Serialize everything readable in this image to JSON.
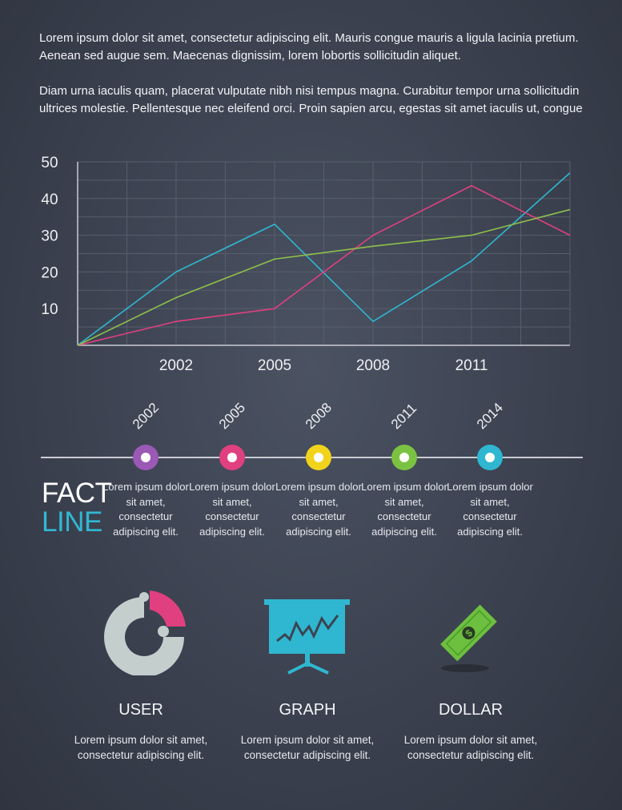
{
  "intro": {
    "p1": "Lorem ipsum dolor sit amet, consectetur adipiscing elit. Mauris congue mauris a ligula lacinia pretium. Aenean sed augue sem. Maecenas dignissim, lorem lobortis sollicitudin aliquet.",
    "p2": "Diam urna iaculis quam, placerat vulputate nibh nisi tempus magna. Curabitur tempor urna sollicitudin ultrices molestie. Pellentesque nec eleifend orci. Proin sapien arcu, egestas sit amet iaculis ut, congue"
  },
  "chart_data": {
    "type": "line",
    "x": [
      1999,
      2002,
      2005,
      2008,
      2011,
      2014
    ],
    "x_ticks": [
      "2002",
      "2005",
      "2008",
      "2011"
    ],
    "y_ticks": [
      "10",
      "20",
      "30",
      "40",
      "50"
    ],
    "ylim": [
      0,
      50
    ],
    "xlim": [
      1999,
      2014
    ],
    "grid": true,
    "series": [
      {
        "color": "#2fb7d1",
        "values": [
          0,
          20,
          33,
          6.5,
          23,
          47
        ]
      },
      {
        "color": "#e0407f",
        "values": [
          0,
          6.5,
          10,
          30,
          43.5,
          30
        ]
      },
      {
        "color": "#8fc04b",
        "values": [
          0,
          13,
          23.5,
          27,
          30,
          37
        ]
      }
    ]
  },
  "timeline": {
    "items": [
      {
        "year": "2002",
        "color": "#9b59b6",
        "text": "Lorem ipsum dolor sit amet, consectetur adipiscing elit."
      },
      {
        "year": "2005",
        "color": "#e0407f",
        "text": "Lorem ipsum dolor sit amet, consectetur adipiscing elit."
      },
      {
        "year": "2008",
        "color": "#f2d31b",
        "text": "Lorem ipsum dolor sit amet, consectetur adipiscing elit."
      },
      {
        "year": "2011",
        "color": "#7cc242",
        "text": "Lorem ipsum dolor sit amet, consectetur adipiscing elit."
      },
      {
        "year": "2014",
        "color": "#2fb7d1",
        "text": "Lorem ipsum dolor sit amet, consectetur adipiscing elit."
      }
    ]
  },
  "fact": {
    "line1": "FACT",
    "line2": "LINE"
  },
  "features": [
    {
      "title": "USER",
      "desc": "Lorem ipsum dolor sit amet, consectetur adipiscing elit."
    },
    {
      "title": "GRAPH",
      "desc": "Lorem ipsum dolor sit amet, consectetur adipiscing elit."
    },
    {
      "title": "DOLLAR",
      "desc": "Lorem ipsum dolor sit amet, consectetur adipiscing elit."
    }
  ],
  "icons": {
    "user": "puzzle-ring-icon",
    "graph": "presentation-chart-icon",
    "dollar": "dollar-bill-icon"
  }
}
